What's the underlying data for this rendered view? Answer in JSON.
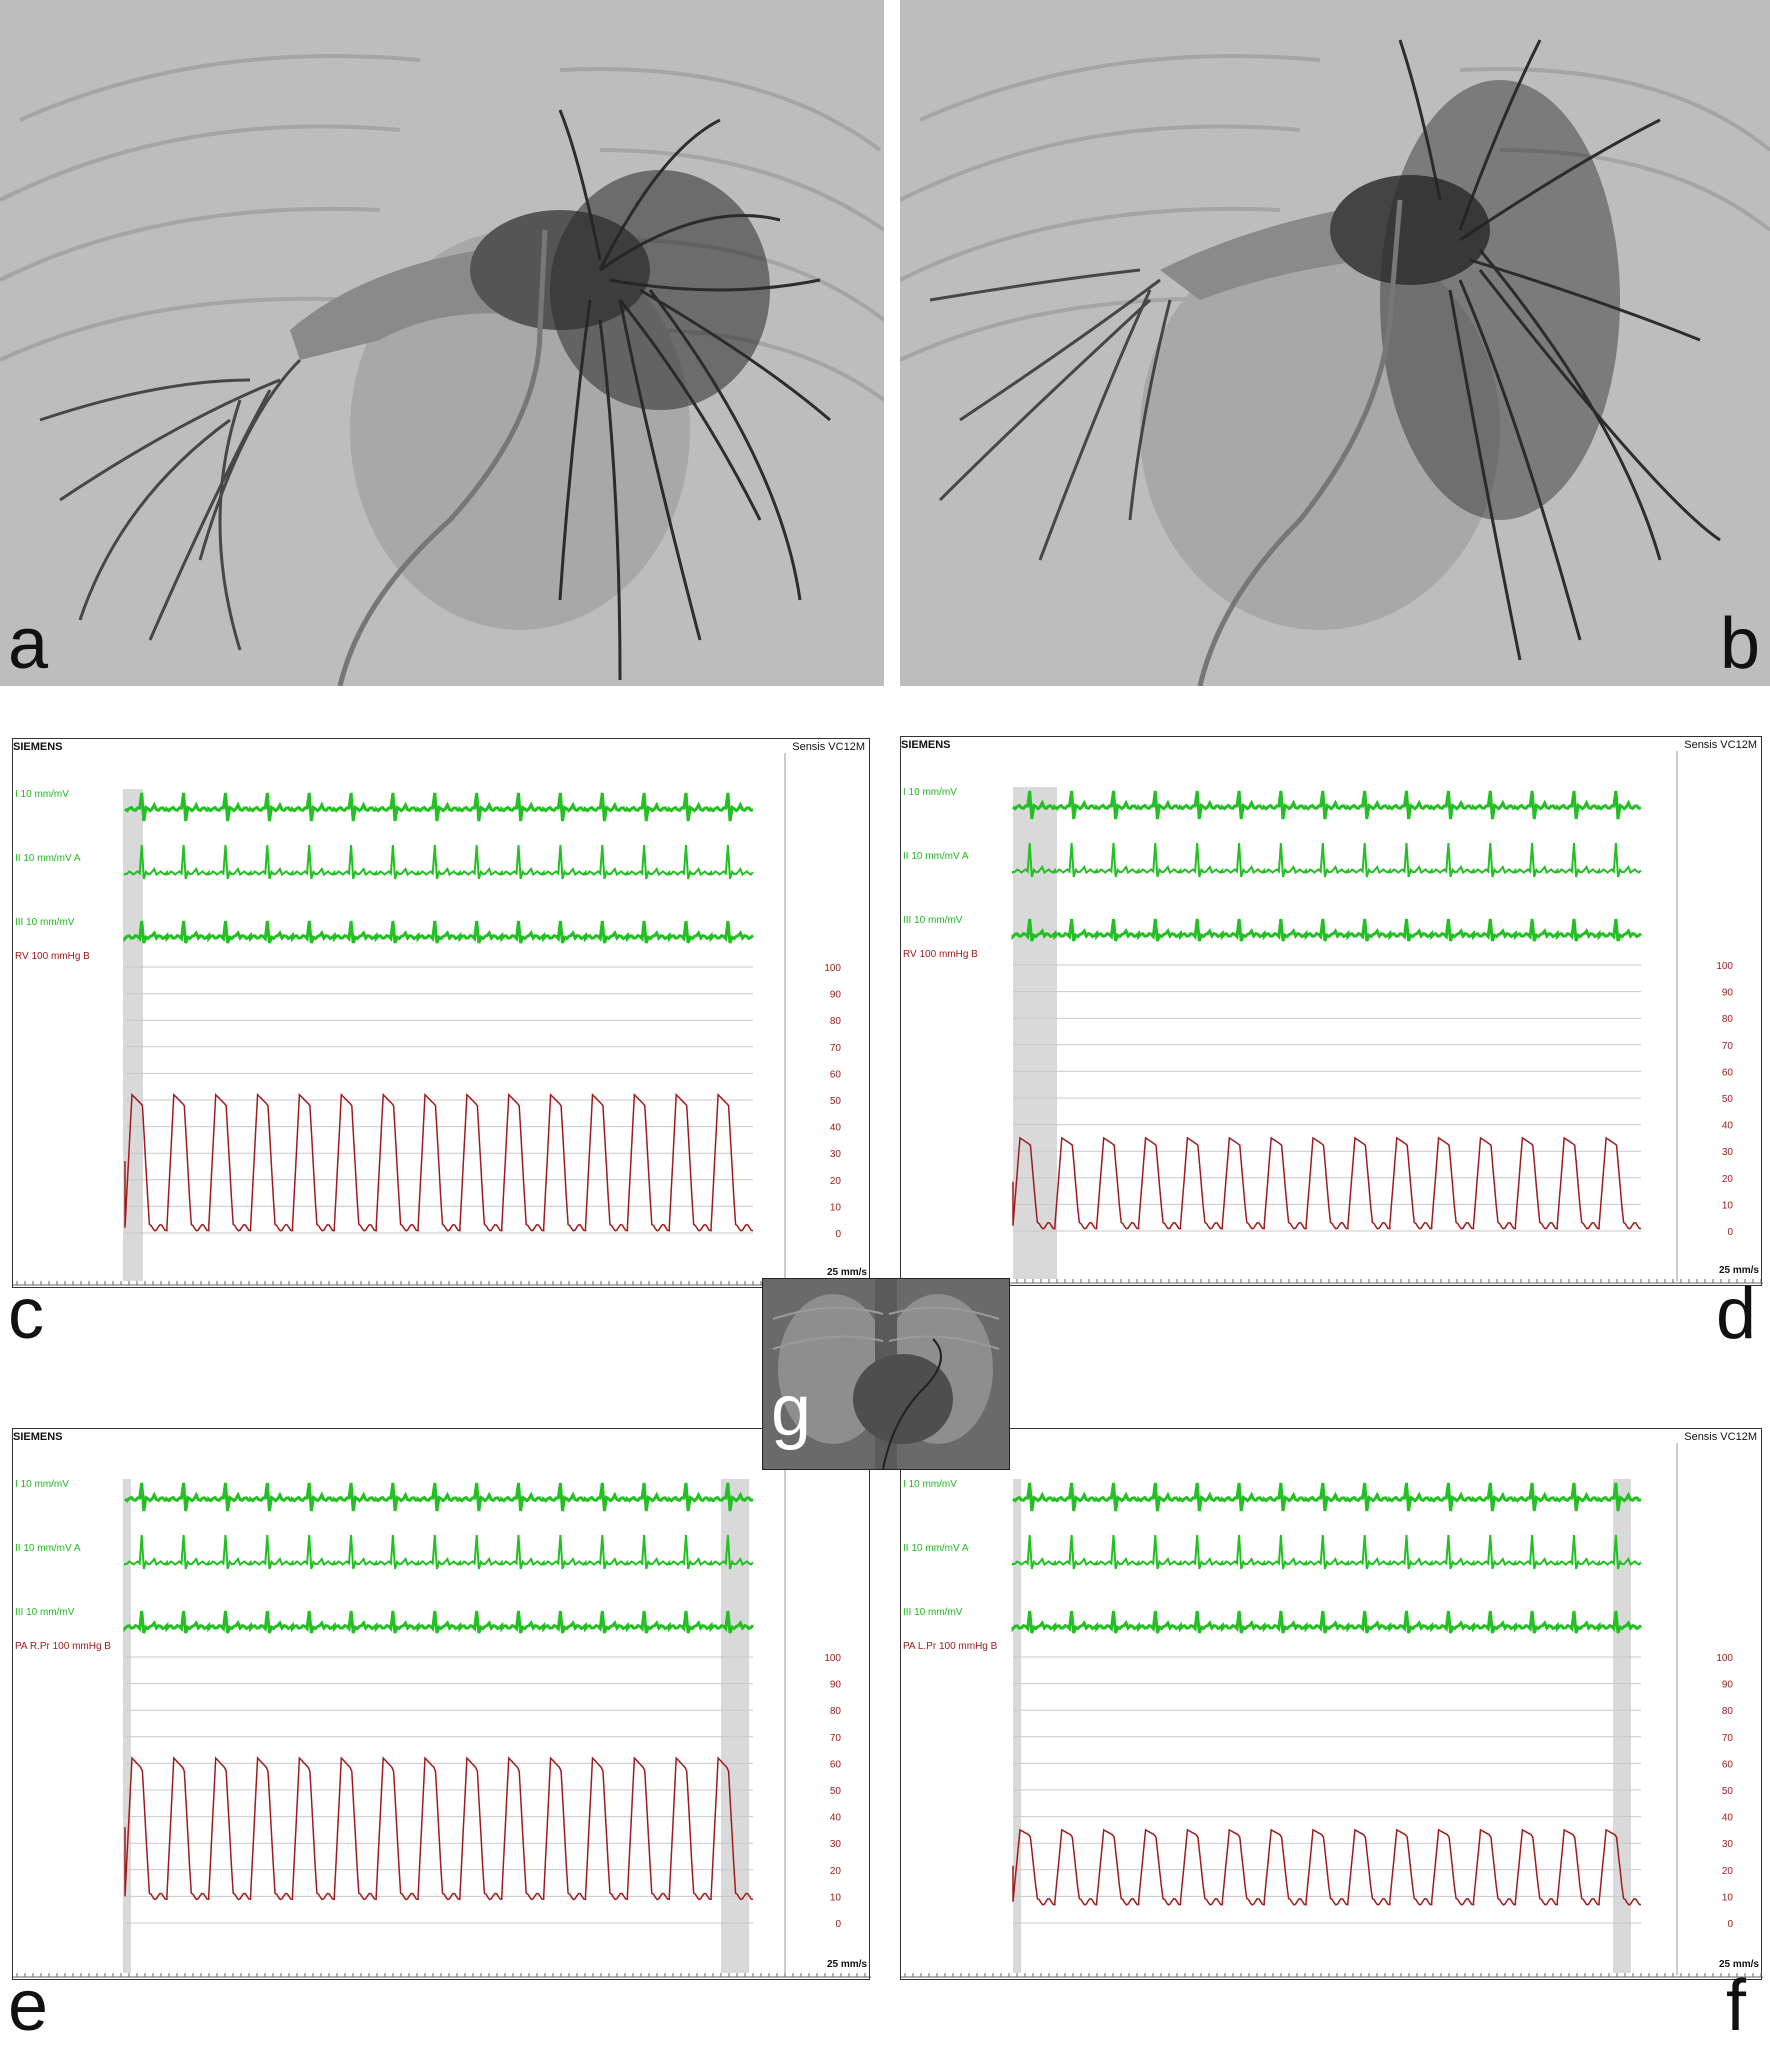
{
  "angiograms": {
    "a": {
      "letter": "a"
    },
    "b": {
      "letter": "b"
    }
  },
  "monitors": {
    "common": {
      "brand": "SIEMENS",
      "model": "Sensis VC12M",
      "lead_i": "I  10 mm/mV",
      "lead_ii": "II  10 mm/mV  A",
      "lead_iii": "III  10 mm/mV",
      "speed": "25 mm/s",
      "scale": [
        "100",
        "90",
        "80",
        "70",
        "60",
        "50",
        "40",
        "30",
        "20",
        "10",
        "0"
      ]
    },
    "c": {
      "letter": "c",
      "pressure_label": "RV  100 mmHg  B"
    },
    "d": {
      "letter": "d",
      "pressure_label": "RV  100 mmHg  B"
    },
    "e": {
      "letter": "e",
      "pressure_label": "PA R.Pr  100 mmHg  B"
    },
    "f": {
      "letter": "f",
      "pressure_label": "PA L.Pr  100 mmHg  B"
    }
  },
  "inset": {
    "letter": "g"
  },
  "chart_data": [
    {
      "panel": "c",
      "type": "line",
      "ylim": [
        0,
        100
      ],
      "pressure_min": 2,
      "pressure_max": 52,
      "beats": 15
    },
    {
      "panel": "d",
      "type": "line",
      "ylim": [
        0,
        100
      ],
      "pressure_min": 2,
      "pressure_max": 35,
      "beats": 15
    },
    {
      "panel": "e",
      "type": "line",
      "ylim": [
        0,
        100
      ],
      "pressure_min": 10,
      "pressure_max": 62,
      "beats": 15
    },
    {
      "panel": "f",
      "type": "line",
      "ylim": [
        0,
        100
      ],
      "pressure_min": 8,
      "pressure_max": 35,
      "beats": 15
    }
  ]
}
